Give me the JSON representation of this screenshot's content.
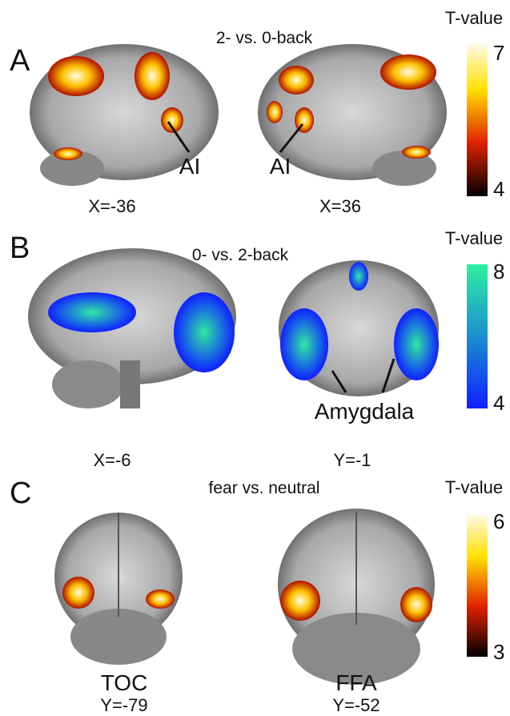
{
  "panels": [
    {
      "label": "A",
      "title": "2- vs. 0-back",
      "colorbar": {
        "title": "T-value",
        "max": "7",
        "min": "4"
      },
      "images": [
        {
          "coordinate": "X=-36",
          "annotation": "AI"
        },
        {
          "coordinate": "X=36",
          "annotation": "AI"
        }
      ]
    },
    {
      "label": "B",
      "title": "0- vs. 2-back",
      "colorbar": {
        "title": "T-value",
        "max": "8",
        "min": "4"
      },
      "images": [
        {
          "coordinate": "X=-6"
        },
        {
          "coordinate": "Y=-1"
        }
      ],
      "annotation": "Amygdala"
    },
    {
      "label": "C",
      "title": "fear vs. neutral",
      "colorbar": {
        "title": "T-value",
        "max": "6",
        "min": "3"
      },
      "images": [
        {
          "coordinate": "Y=-79",
          "annotation": "TOC"
        },
        {
          "coordinate": "Y=-52",
          "annotation": "FFA"
        }
      ]
    }
  ]
}
